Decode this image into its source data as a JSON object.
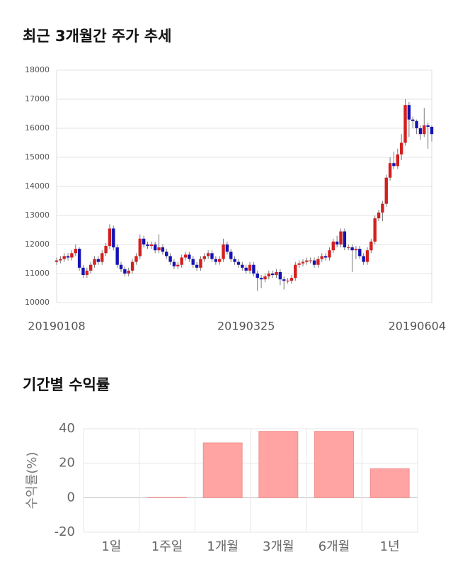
{
  "chart_data": [
    {
      "type": "candlestick",
      "title": "최근 3개월간 주가 추세",
      "categories": [
        "20190108",
        null,
        null,
        null,
        null,
        null,
        null,
        null,
        null,
        null,
        null,
        null,
        null,
        null,
        null,
        null,
        null,
        null,
        null,
        null,
        null,
        null,
        null,
        null,
        null,
        null,
        null,
        null,
        null,
        null,
        null,
        null,
        null,
        null,
        null,
        null,
        null,
        null,
        null,
        null,
        null,
        null,
        null,
        null,
        null,
        null,
        null,
        null,
        null,
        null,
        "20190325",
        null,
        null,
        null,
        null,
        null,
        null,
        null,
        null,
        null,
        null,
        null,
        null,
        null,
        null,
        null,
        null,
        null,
        null,
        null,
        null,
        null,
        null,
        null,
        null,
        null,
        null,
        null,
        null,
        null,
        null,
        null,
        null,
        null,
        null,
        null,
        null,
        null,
        null,
        null,
        null,
        null,
        null,
        null,
        null,
        null,
        null,
        null,
        null,
        "20190604"
      ],
      "open": [
        11400,
        11450,
        11500,
        11600,
        11550,
        11700,
        11850,
        11200,
        10950,
        11100,
        11300,
        11500,
        11400,
        11700,
        11950,
        12550,
        11900,
        11300,
        11150,
        11000,
        11100,
        11400,
        11600,
        12200,
        12000,
        11950,
        12000,
        11800,
        11900,
        11750,
        11600,
        11400,
        11250,
        11300,
        11550,
        11650,
        11500,
        11300,
        11200,
        11500,
        11600,
        11700,
        11500,
        11400,
        11500,
        12000,
        11750,
        11500,
        11400,
        11300,
        11200,
        11100,
        11300,
        11000,
        10850,
        10800,
        10900,
        11000,
        10950,
        11050,
        10800,
        10750,
        10750,
        10850,
        11300,
        11350,
        11400,
        11450,
        11450,
        11300,
        11500,
        11600,
        11550,
        11800,
        12100,
        12000,
        12450,
        11900,
        11900,
        11800,
        11850,
        11600,
        11400,
        11800,
        12100,
        12900,
        13100,
        13400,
        14300,
        14800,
        14700,
        15100,
        15500,
        16800,
        16300,
        16250,
        16000,
        15800,
        16100,
        16050
      ],
      "high": [
        11550,
        11600,
        11700,
        11700,
        11800,
        12000,
        11900,
        11300,
        11200,
        11400,
        11600,
        11600,
        11800,
        12050,
        12700,
        12650,
        12000,
        11400,
        11250,
        11200,
        11500,
        11700,
        12350,
        12300,
        12100,
        12100,
        12100,
        12350,
        12000,
        11850,
        11700,
        11500,
        11400,
        11650,
        11750,
        11750,
        11600,
        11400,
        11600,
        11700,
        11800,
        11800,
        11600,
        11600,
        12200,
        12100,
        11850,
        11600,
        11500,
        11400,
        11300,
        11400,
        11400,
        11100,
        10950,
        11000,
        11100,
        11100,
        11150,
        11150,
        10900,
        10850,
        10950,
        11400,
        11450,
        11500,
        11550,
        11550,
        11550,
        11600,
        11700,
        11700,
        11900,
        12200,
        12300,
        12550,
        12550,
        12000,
        12000,
        11950,
        11950,
        11700,
        11900,
        12200,
        13000,
        13200,
        13500,
        14400,
        15000,
        15200,
        15300,
        15800,
        17000,
        16900,
        16400,
        16300,
        16100,
        16700,
        16200,
        16100
      ],
      "low": [
        11300,
        11350,
        11400,
        11450,
        11450,
        11600,
        11100,
        10850,
        10850,
        11000,
        11200,
        11300,
        11300,
        11600,
        11850,
        11800,
        11200,
        11050,
        10900,
        10900,
        11000,
        11300,
        11500,
        11900,
        11850,
        11850,
        11700,
        11700,
        11650,
        11500,
        11300,
        11150,
        11150,
        11200,
        11450,
        11400,
        11200,
        11100,
        11100,
        11400,
        11500,
        11400,
        11300,
        11300,
        11400,
        11650,
        11400,
        11300,
        11200,
        11100,
        11000,
        11000,
        10900,
        10400,
        10500,
        10700,
        10800,
        10850,
        10850,
        10600,
        10450,
        10650,
        10650,
        10750,
        11200,
        11250,
        11300,
        11350,
        11200,
        11200,
        11400,
        11450,
        11450,
        11700,
        11900,
        11900,
        11800,
        11800,
        11050,
        11500,
        11500,
        11300,
        11300,
        11700,
        12000,
        12800,
        12800,
        13300,
        14200,
        14600,
        14600,
        14900,
        15400,
        15700,
        16000,
        15800,
        15600,
        15700,
        15300,
        15550
      ],
      "close": [
        11450,
        11500,
        11600,
        11550,
        11700,
        11850,
        11200,
        10950,
        11100,
        11300,
        11500,
        11400,
        11700,
        11950,
        12550,
        11900,
        11300,
        11150,
        11000,
        11100,
        11400,
        11600,
        12200,
        12000,
        11950,
        12000,
        11800,
        11900,
        11750,
        11600,
        11400,
        11250,
        11300,
        11550,
        11650,
        11500,
        11300,
        11200,
        11500,
        11600,
        11700,
        11500,
        11400,
        11500,
        12000,
        11750,
        11500,
        11400,
        11300,
        11200,
        11100,
        11300,
        11000,
        10850,
        10800,
        10900,
        11000,
        10950,
        11050,
        10800,
        10750,
        10750,
        10850,
        11300,
        11350,
        11400,
        11450,
        11450,
        11300,
        11500,
        11600,
        11550,
        11800,
        12100,
        12000,
        12450,
        11900,
        11900,
        11800,
        11850,
        11600,
        11400,
        11800,
        12100,
        12900,
        13100,
        13400,
        14300,
        14800,
        14700,
        15100,
        15500,
        16800,
        16300,
        16250,
        16000,
        15800,
        16100,
        16050,
        15800
      ],
      "up_color": "#d2201f",
      "down_color": "#1512b4",
      "ylim": [
        10000,
        18000
      ],
      "yticks": [
        10000,
        11000,
        12000,
        13000,
        14000,
        15000,
        16000,
        17000,
        18000
      ],
      "grid": true
    },
    {
      "type": "bar",
      "title": "기간별 수익률",
      "ylabel": "수익률(%)",
      "categories": [
        "1일",
        "1주일",
        "1개월",
        "3개월",
        "6개월",
        "1년"
      ],
      "values": [
        0,
        0.2,
        31.8,
        38.5,
        38.5,
        16.8
      ],
      "color": "#ffa3a3",
      "ylim": [
        -20,
        40
      ],
      "yticks": [
        -20,
        0,
        20,
        40
      ],
      "grid": true
    }
  ]
}
